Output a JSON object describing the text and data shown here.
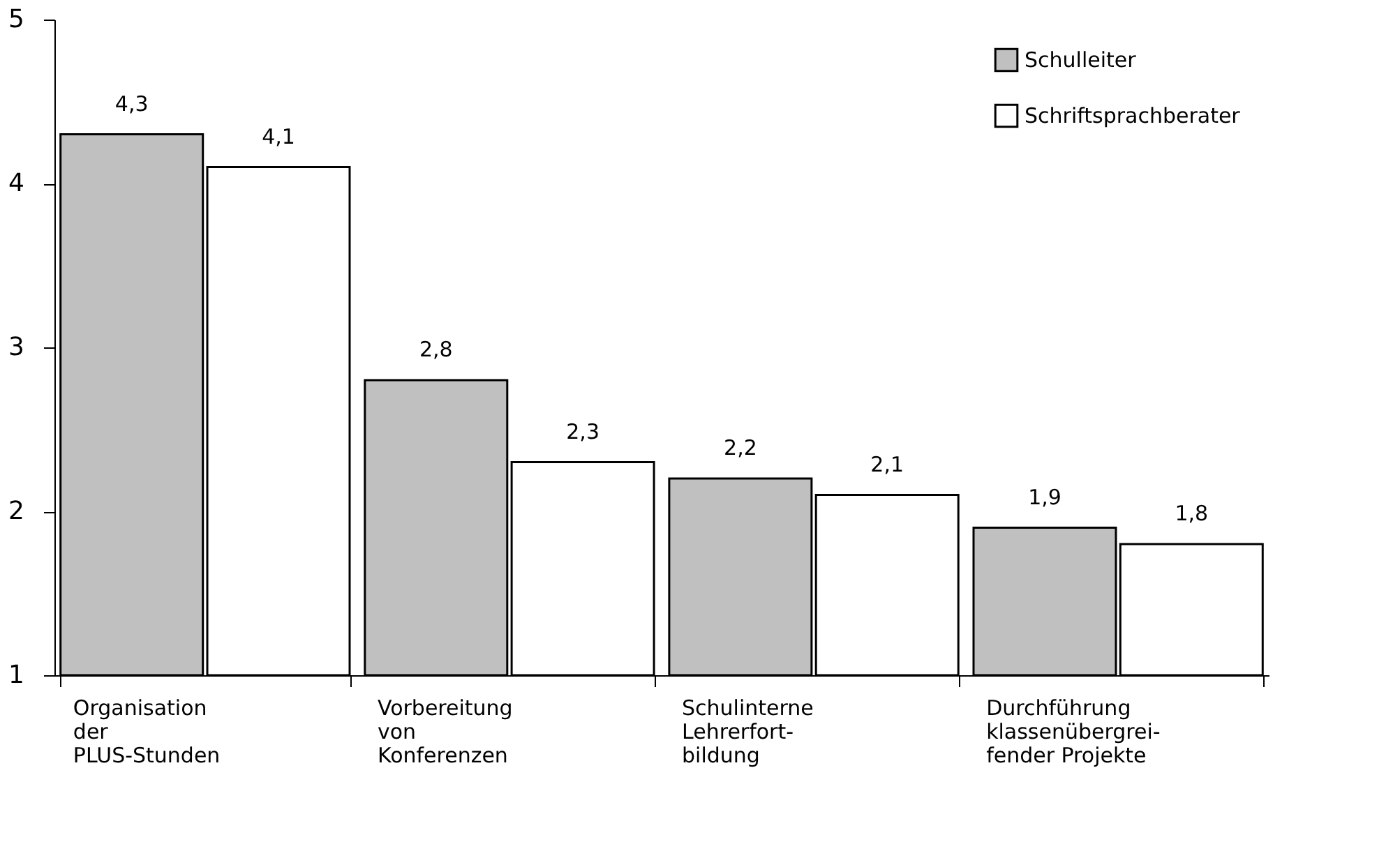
{
  "chart_data": {
    "type": "bar",
    "categories": [
      "Organisation\nder\nPLUS-Stunden",
      "Vorbereitung\nvon\nKonferenzen",
      "Schulinterne\nLehrerfort-\nbildung",
      "Durchführung\nklassenübergrei-\nfender Projekte"
    ],
    "series": [
      {
        "name": "Schulleiter",
        "color": "#c0c0c0",
        "values": [
          4.3,
          2.8,
          2.2,
          1.9
        ],
        "value_labels": [
          "4,3",
          "2,8",
          "2,2",
          "1,9"
        ]
      },
      {
        "name": "Schriftsprachberater",
        "color": "#ffffff",
        "values": [
          4.1,
          2.3,
          2.1,
          1.8
        ],
        "value_labels": [
          "4,1",
          "2,3",
          "2,1",
          "1,8"
        ]
      }
    ],
    "ylim": [
      1,
      5
    ],
    "yticks": [
      1,
      2,
      3,
      4,
      5
    ],
    "grid": false,
    "legend": "top right"
  }
}
